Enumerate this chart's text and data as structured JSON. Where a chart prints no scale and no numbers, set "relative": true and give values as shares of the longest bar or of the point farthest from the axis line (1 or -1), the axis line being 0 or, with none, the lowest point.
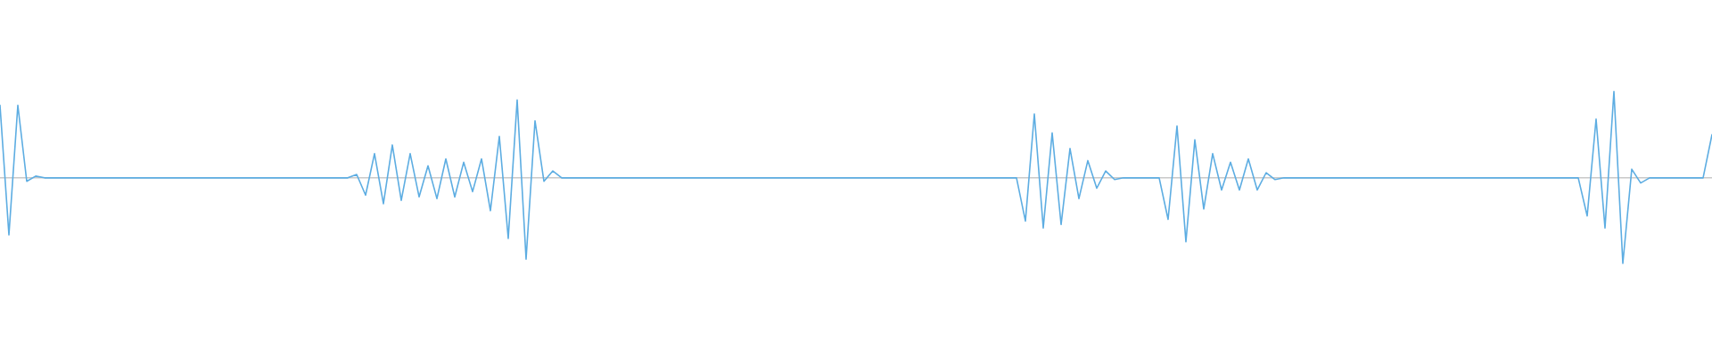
{
  "chart_data": {
    "type": "line",
    "relative": true,
    "categories": [
      null,
      null,
      null,
      null,
      null,
      null,
      null,
      null,
      null,
      null,
      null,
      null,
      null,
      null,
      null,
      null,
      null,
      null,
      null,
      null,
      null,
      null,
      null,
      null,
      null,
      null,
      null,
      null,
      null,
      null,
      null,
      null,
      null,
      null,
      null,
      null,
      null,
      null,
      null,
      null,
      null,
      null,
      null,
      null,
      null,
      null,
      null,
      null,
      null,
      null,
      null,
      null,
      null,
      null,
      null,
      null,
      null,
      null,
      null,
      null,
      null,
      null,
      null,
      null,
      null,
      null,
      null,
      null,
      null,
      null,
      null,
      null,
      null,
      null,
      null,
      null,
      null,
      null,
      null,
      null,
      null,
      null,
      null,
      null,
      null,
      null,
      null,
      null,
      null,
      null,
      null,
      null,
      null,
      null,
      null,
      null,
      null,
      null,
      null,
      null,
      null,
      null,
      null,
      null,
      null,
      null,
      null,
      null,
      null,
      null,
      null,
      null,
      null,
      null,
      null,
      null,
      null,
      null,
      null,
      null,
      null,
      null,
      null,
      null,
      null,
      null,
      null,
      null,
      null,
      null,
      null,
      null,
      null,
      null,
      null,
      null,
      null,
      null,
      null,
      null,
      null,
      null,
      null,
      null,
      null,
      null,
      null,
      null,
      null,
      null,
      null,
      null,
      null,
      null,
      null,
      null,
      null,
      null,
      null,
      null,
      null,
      null,
      null,
      null,
      null,
      null,
      null,
      null,
      null,
      null,
      null,
      null,
      null,
      null,
      null,
      null,
      null,
      null,
      null,
      null,
      null,
      null,
      null,
      null,
      null,
      null,
      null,
      null,
      null,
      null,
      null,
      null,
      null
    ],
    "series": [
      {
        "color": "#5dade2",
        "values": [
          0.84,
          -0.66,
          0.84,
          -0.04,
          0.02,
          0,
          0,
          0,
          0,
          0,
          0,
          0,
          0,
          0,
          0,
          0,
          0,
          0,
          0,
          0,
          0,
          0,
          0,
          0,
          0,
          0,
          0,
          0,
          0,
          0,
          0,
          0,
          0,
          0,
          0,
          0,
          0,
          0,
          0,
          0,
          0.04,
          -0.2,
          0.28,
          -0.3,
          0.38,
          -0.26,
          0.28,
          -0.22,
          0.14,
          -0.24,
          0.22,
          -0.22,
          0.18,
          -0.16,
          0.22,
          -0.38,
          0.48,
          -0.7,
          0.9,
          -0.94,
          0.66,
          -0.04,
          0.08,
          0,
          0,
          0,
          0,
          0,
          0,
          0,
          0,
          0,
          0,
          0,
          0,
          0,
          0,
          0,
          0,
          0,
          0,
          0,
          0,
          0,
          0,
          0,
          0,
          0,
          0,
          0,
          0,
          0,
          0,
          0,
          0,
          0,
          0,
          0,
          0,
          0,
          0,
          0,
          0,
          0,
          0,
          0,
          0,
          0,
          0,
          0,
          0,
          0,
          0,
          0,
          0,
          -0.5,
          0.74,
          -0.58,
          0.52,
          -0.54,
          0.34,
          -0.24,
          0.2,
          -0.12,
          0.08,
          -0.02,
          0,
          0,
          0,
          0,
          0,
          -0.48,
          0.6,
          -0.74,
          0.44,
          -0.36,
          0.28,
          -0.14,
          0.18,
          -0.14,
          0.22,
          -0.14,
          0.06,
          -0.02,
          0,
          0,
          0,
          0,
          0,
          0,
          0,
          0,
          0,
          0,
          0,
          0,
          0,
          0,
          0,
          0,
          0,
          0,
          0,
          0,
          0,
          0,
          0,
          0,
          0,
          0,
          0,
          0,
          0,
          0,
          0,
          0,
          0,
          0,
          -0.44,
          0.68,
          -0.58,
          1,
          -0.99,
          0.1,
          -0.06,
          0,
          0,
          0,
          0,
          0,
          0,
          0,
          0.5
        ]
      }
    ]
  }
}
